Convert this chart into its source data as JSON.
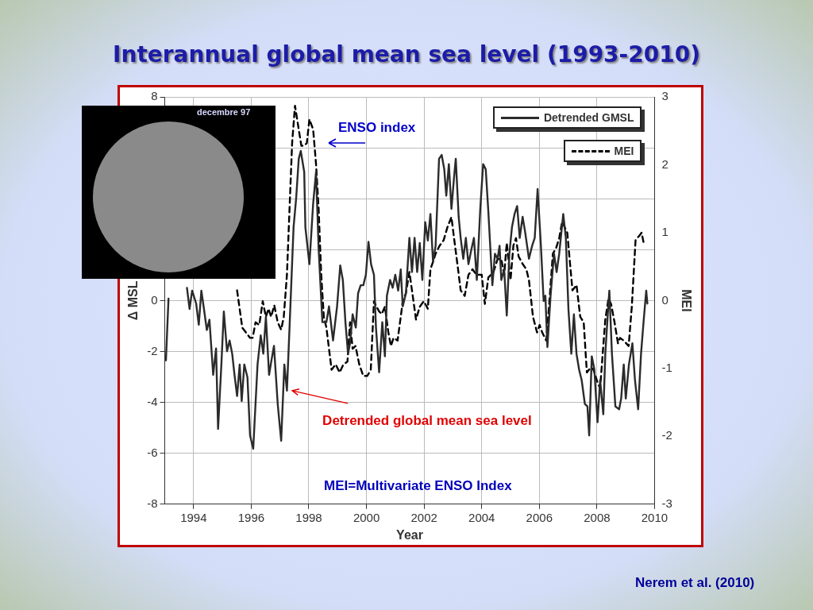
{
  "chart_data": {
    "type": "line",
    "title": "Interannual global mean sea level (1993-2010)",
    "xlabel": "Year",
    "ylabel": "Δ MSL",
    "y2label": "MEI",
    "xlim": [
      1993,
      2010
    ],
    "xticks": [
      1994,
      1996,
      1998,
      2000,
      2002,
      2004,
      2006,
      2008,
      2010
    ],
    "ylim": [
      -8,
      8
    ],
    "yticks": [
      -8,
      -6,
      -4,
      -2,
      0,
      {
        "value": 2,
        "label": null
      },
      {
        "value": 4,
        "label": null
      },
      {
        "value": 6,
        "label": null
      },
      8
    ],
    "y2lim": [
      -3,
      3
    ],
    "y2ticks": [
      -3,
      -2,
      -1,
      0,
      1,
      2,
      3
    ],
    "grid": true,
    "legend": "top right",
    "marker": "none",
    "series": [
      {
        "name": "Detrended GMSL",
        "color": "#2b2b2b",
        "line_style": "solid",
        "x": [
          1993.04,
          1993.13,
          1993.5,
          1993.77,
          1993.86,
          1993.95,
          1994.09,
          1994.18,
          1994.27,
          1994.36,
          1994.46,
          1994.55,
          1994.68,
          1994.78,
          1994.85,
          1994.96,
          1995.05,
          1995.16,
          1995.25,
          1995.34,
          1995.42,
          1995.51,
          1995.6,
          1995.67,
          1995.76,
          1995.87,
          1995.96,
          1996.07,
          1996.22,
          1996.33,
          1996.42,
          1996.51,
          1996.62,
          1996.71,
          1996.79,
          1996.92,
          1997.04,
          1997.15,
          1997.24,
          1997.33,
          1997.47,
          1997.56,
          1997.65,
          1997.72,
          1997.84,
          1997.88,
          1998.02,
          1998.15,
          1998.25,
          1998.34,
          1998.47,
          1998.61,
          1998.7,
          1998.84,
          1998.98,
          1999.09,
          1999.18,
          1999.27,
          1999.36,
          1999.43,
          1999.52,
          1999.63,
          1999.71,
          1999.8,
          1999.89,
          1999.98,
          2000.07,
          2000.16,
          2000.26,
          2000.33,
          2000.44,
          2000.55,
          2000.64,
          2000.71,
          2000.82,
          2000.91,
          2001.0,
          2001.1,
          2001.19,
          2001.26,
          2001.37,
          2001.49,
          2001.58,
          2001.67,
          2001.76,
          2001.85,
          2001.94,
          2002.04,
          2002.13,
          2002.22,
          2002.31,
          2002.4,
          2002.52,
          2002.61,
          2002.7,
          2002.77,
          2002.86,
          2002.95,
          2003.04,
          2003.1,
          2003.2,
          2003.27,
          2003.36,
          2003.45,
          2003.54,
          2003.63,
          2003.73,
          2003.83,
          2003.95,
          2004.05,
          2004.14,
          2004.23,
          2004.37,
          2004.46,
          2004.55,
          2004.62,
          2004.68,
          2004.78,
          2004.87,
          2004.96,
          2005.05,
          2005.14,
          2005.23,
          2005.32,
          2005.42,
          2005.51,
          2005.64,
          2005.75,
          2005.84,
          2005.94,
          2006.05,
          2006.15,
          2006.21,
          2006.28,
          2006.39,
          2006.51,
          2006.6,
          2006.69,
          2006.83,
          2006.92,
          2007.01,
          2007.11,
          2007.2,
          2007.29,
          2007.38,
          2007.47,
          2007.58,
          2007.67,
          2007.73,
          2007.82,
          2007.91,
          2008.02,
          2008.11,
          2008.22,
          2008.29,
          2008.37,
          2008.43,
          2008.52,
          2008.64,
          2008.77,
          2008.84,
          2008.93,
          2009.0,
          2009.11,
          2009.23,
          2009.32,
          2009.43,
          2009.53,
          2009.62,
          2009.71,
          2009.75
        ],
        "values": [
          -2.35,
          0.08,
          null,
          0.5,
          -0.33,
          0.39,
          -0.12,
          -0.95,
          0.39,
          -0.33,
          -1.16,
          -0.75,
          -2.92,
          -1.88,
          -5.04,
          -2.61,
          -0.43,
          -1.99,
          -1.57,
          -2.09,
          -2.92,
          -3.75,
          -2.51,
          -3.95,
          -2.51,
          -3.02,
          -5.3,
          -5.82,
          -2.51,
          -1.37,
          -2.09,
          -0.64,
          -2.92,
          -2.3,
          -1.78,
          -4.06,
          -5.51,
          -2.51,
          -3.54,
          -1.06,
          2.88,
          4.02,
          5.57,
          5.88,
          5.05,
          2.88,
          1.43,
          3.81,
          5.05,
          2.05,
          -0.85,
          -0.85,
          -0.23,
          -1.57,
          -0.23,
          1.38,
          0.81,
          -0.85,
          -2.09,
          -1.68,
          -0.54,
          -1.06,
          0.29,
          0.6,
          0.6,
          1.01,
          2.31,
          1.43,
          1.01,
          -1.06,
          -2.82,
          -0.85,
          -2.19,
          0.19,
          0.81,
          0.5,
          1.01,
          0.39,
          1.22,
          -0.23,
          0.29,
          2.46,
          1.12,
          2.46,
          1.12,
          2.26,
          0.81,
          3.08,
          2.36,
          3.4,
          1.53,
          2.15,
          5.57,
          5.72,
          5.16,
          4.12,
          5.36,
          3.6,
          4.84,
          5.57,
          3.29,
          2.46,
          1.64,
          2.46,
          1.43,
          1.95,
          2.46,
          0.81,
          3.6,
          5.36,
          5.16,
          3.5,
          0.6,
          1.84,
          1.64,
          2.15,
          0.81,
          1.22,
          -0.59,
          1.84,
          2.88,
          3.4,
          3.71,
          2.46,
          3.29,
          2.67,
          1.64,
          2.15,
          2.46,
          4.38,
          2.26,
          -0.02,
          0.19,
          -1.83,
          0.19,
          1.84,
          1.12,
          1.84,
          3.4,
          2.46,
          -0.33,
          -2.09,
          -0.54,
          -2.09,
          -2.71,
          -3.13,
          -4.06,
          -4.16,
          -5.3,
          -2.19,
          -2.71,
          -4.78,
          -3.13,
          -4.47,
          -2.09,
          -0.64,
          0.39,
          -2.09,
          -4.16,
          -4.27,
          -3.85,
          -2.51,
          -3.85,
          -2.51,
          -1.68,
          -3.13,
          -4.27,
          -2.09,
          -0.8,
          0.39,
          -0.12
        ]
      },
      {
        "name": "MEI",
        "color": "#000000",
        "line_style": "dashed",
        "axis": "y2",
        "x": [
          1995.51,
          1995.69,
          1995.96,
          1996.05,
          1996.15,
          1996.28,
          1996.4,
          1996.51,
          1996.6,
          1996.69,
          1996.8,
          1996.92,
          1997.04,
          1997.13,
          1997.24,
          1997.33,
          1997.42,
          1997.52,
          1997.65,
          1997.74,
          1997.84,
          1997.93,
          1998.02,
          1998.15,
          1998.25,
          1998.34,
          1998.43,
          1998.52,
          1998.61,
          1998.7,
          1998.79,
          1998.93,
          1999.07,
          1999.2,
          1999.34,
          1999.43,
          1999.52,
          1999.62,
          1999.75,
          1999.89,
          2000.03,
          2000.15,
          2000.26,
          2000.35,
          2000.44,
          2000.53,
          2000.64,
          2000.76,
          2000.85,
          2000.94,
          2001.08,
          2001.19,
          2001.26,
          2001.37,
          2001.49,
          2001.58,
          2001.72,
          2001.85,
          2001.99,
          2002.13,
          2002.22,
          2002.31,
          2002.4,
          2002.54,
          2002.68,
          2002.81,
          2002.95,
          2003.04,
          2003.18,
          2003.27,
          2003.41,
          2003.54,
          2003.68,
          2003.82,
          2004.0,
          2004.11,
          2004.23,
          2004.41,
          2004.55,
          2004.68,
          2004.78,
          2004.87,
          2005.0,
          2005.1,
          2005.19,
          2005.28,
          2005.42,
          2005.55,
          2005.64,
          2005.78,
          2005.92,
          2006.01,
          2006.1,
          2006.24,
          2006.33,
          2006.47,
          2006.58,
          2006.69,
          2006.79,
          2006.88,
          2006.97,
          2007.06,
          2007.15,
          2007.29,
          2007.42,
          2007.54,
          2007.65,
          2007.79,
          2007.88,
          2008.02,
          2008.11,
          2008.2,
          2008.29,
          2008.4,
          2008.49,
          2008.61,
          2008.73,
          2008.8,
          2008.93,
          2009.1,
          2009.21,
          2009.34,
          2009.48,
          2009.55,
          2009.62
        ],
        "values": [
          0.15,
          -0.4,
          -0.55,
          -0.55,
          -0.32,
          -0.36,
          -0.01,
          -0.24,
          -0.12,
          -0.24,
          -0.07,
          -0.32,
          -0.43,
          -0.24,
          0.38,
          1.35,
          2.32,
          2.87,
          2.52,
          2.28,
          2.28,
          2.32,
          2.67,
          2.52,
          2.01,
          1.35,
          0.38,
          -0.24,
          -0.4,
          -0.71,
          -1.02,
          -0.94,
          -1.06,
          -0.94,
          -0.9,
          -0.32,
          -0.71,
          -0.67,
          -0.94,
          -1.11,
          -1.11,
          -1.02,
          -0.01,
          -0.09,
          -0.16,
          -0.2,
          -0.09,
          -0.47,
          -0.67,
          -0.55,
          -0.59,
          -0.24,
          -0.01,
          0.11,
          0.42,
          0.15,
          -0.28,
          -0.09,
          -0.01,
          -0.12,
          0.46,
          0.57,
          0.69,
          0.81,
          0.89,
          1.08,
          1.23,
          0.92,
          0.46,
          0.15,
          0.07,
          0.38,
          0.46,
          0.38,
          0.38,
          -0.05,
          0.34,
          0.42,
          0.61,
          0.61,
          0.38,
          0.85,
          0.3,
          0.81,
          0.92,
          0.65,
          0.54,
          0.46,
          0.3,
          -0.24,
          -0.47,
          -0.36,
          -0.47,
          -0.59,
          -0.12,
          0.69,
          0.77,
          0.92,
          1.16,
          1.08,
          1.0,
          0.57,
          0.15,
          0.23,
          -0.24,
          -0.32,
          -1.06,
          -0.98,
          -1.02,
          -1.21,
          -1.29,
          -0.78,
          -0.28,
          0.03,
          -0.05,
          -0.32,
          -0.63,
          -0.55,
          -0.59,
          -0.67,
          -0.09,
          0.89,
          0.96,
          1.0,
          0.85
        ]
      }
    ],
    "annotations": [
      "ENSO index",
      {
        "text": "Detrended global mean sea level",
        "x": 1997.37,
        "y": -3.54
      },
      "MEI=Multivariate ENSO Index",
      "decembre 97",
      "Nerem et al. (2010)"
    ]
  }
}
